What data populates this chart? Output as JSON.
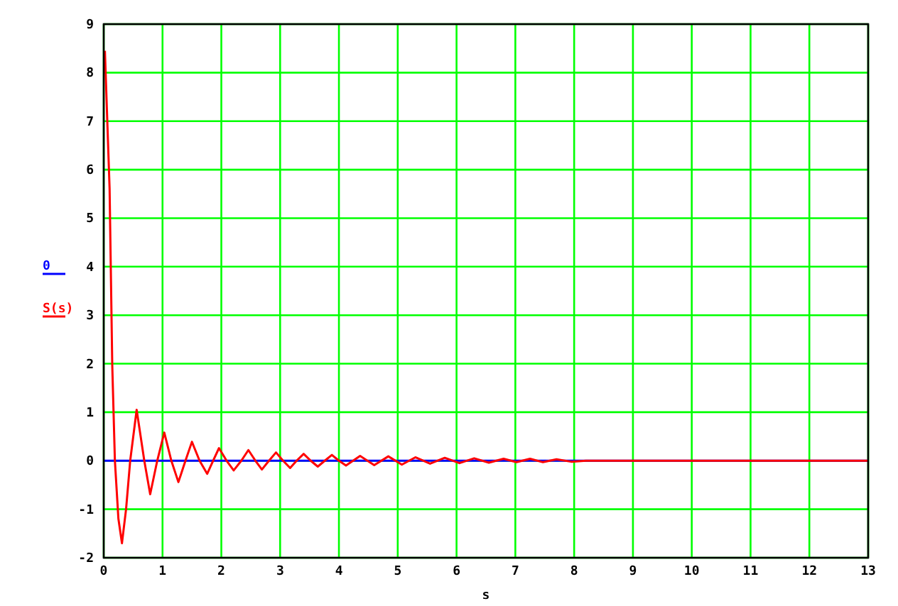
{
  "chart_data": {
    "type": "line",
    "xlabel": "s",
    "xlim": [
      0,
      13
    ],
    "ylim": [
      -2,
      9
    ],
    "xticks": [
      0,
      1,
      2,
      3,
      4,
      5,
      6,
      7,
      8,
      9,
      10,
      11,
      12,
      13
    ],
    "yticks": [
      -2,
      -1,
      0,
      1,
      2,
      3,
      4,
      5,
      6,
      7,
      8,
      9
    ],
    "grid": true,
    "legend": "left",
    "series": [
      {
        "name": "0",
        "color": "#0000ff",
        "x": [
          0,
          13
        ],
        "values": [
          0,
          0
        ]
      },
      {
        "name": "S(s)",
        "color": "#ff0000",
        "x": [
          0.02,
          0.1,
          0.145,
          0.19,
          0.25,
          0.31,
          0.38,
          0.45,
          0.56,
          0.69,
          0.79,
          0.91,
          1.03,
          1.15,
          1.27,
          1.39,
          1.5,
          1.63,
          1.76,
          1.86,
          1.96,
          2.09,
          2.21,
          2.34,
          2.46,
          2.58,
          2.69,
          2.81,
          2.93,
          3.05,
          3.17,
          3.28,
          3.4,
          3.52,
          3.64,
          3.76,
          3.88,
          4.0,
          4.12,
          4.24,
          4.36,
          4.6,
          4.84,
          5.07,
          5.3,
          5.55,
          5.8,
          6.05,
          6.3,
          6.55,
          6.8,
          7.02,
          7.25,
          7.47,
          7.7,
          7.95,
          8.2,
          9,
          10,
          11,
          12,
          13
        ],
        "values": [
          8.45,
          5.6,
          1.97,
          0,
          -1.2,
          -1.7,
          -1.0,
          0,
          1.05,
          0,
          -0.69,
          0,
          0.58,
          0,
          -0.44,
          0,
          0.39,
          0,
          -0.27,
          0,
          0.26,
          0,
          -0.2,
          0,
          0.22,
          0,
          -0.18,
          0,
          0.17,
          0,
          -0.15,
          0,
          0.14,
          0,
          -0.12,
          0,
          0.12,
          0,
          -0.1,
          0,
          0.1,
          -0.09,
          0.09,
          -0.08,
          0.07,
          -0.06,
          0.06,
          -0.05,
          0.05,
          -0.04,
          0.04,
          -0.03,
          0.04,
          -0.03,
          0.03,
          -0.02,
          0,
          0,
          0,
          0,
          0,
          0
        ]
      }
    ]
  }
}
